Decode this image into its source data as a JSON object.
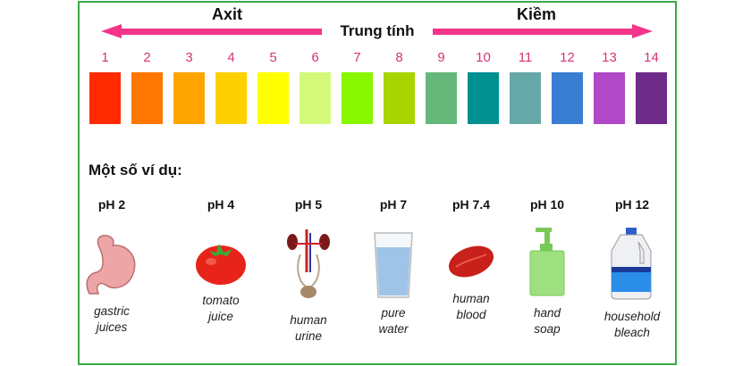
{
  "scale": {
    "acid_label": "Axit",
    "base_label": "Kiềm",
    "neutral_label": "Trung tính",
    "arrow_color": "#f4348a",
    "levels": [
      {
        "n": "1",
        "color": "#ff2a00"
      },
      {
        "n": "2",
        "color": "#ff7700"
      },
      {
        "n": "3",
        "color": "#ffa500"
      },
      {
        "n": "4",
        "color": "#ffd000"
      },
      {
        "n": "5",
        "color": "#ffff00"
      },
      {
        "n": "6",
        "color": "#d4f97a"
      },
      {
        "n": "7",
        "color": "#88f700"
      },
      {
        "n": "8",
        "color": "#a8d400"
      },
      {
        "n": "9",
        "color": "#66b87a"
      },
      {
        "n": "10",
        "color": "#009090"
      },
      {
        "n": "11",
        "color": "#66a8a8"
      },
      {
        "n": "12",
        "color": "#3a7ed4"
      },
      {
        "n": "13",
        "color": "#b048c8"
      },
      {
        "n": "14",
        "color": "#6e2b8a"
      }
    ]
  },
  "examples_title": "Một số ví dụ:",
  "examples": [
    {
      "ph": "pH 2",
      "caption1": "gastric",
      "caption2": "juices",
      "icon": "stomach-icon"
    },
    {
      "ph": "pH 4",
      "caption1": "tomato",
      "caption2": "juice",
      "icon": "tomato-icon"
    },
    {
      "ph": "pH 5",
      "caption1": "human",
      "caption2": "urine",
      "icon": "urinary-system-icon"
    },
    {
      "ph": "pH 7",
      "caption1": "pure",
      "caption2": "water",
      "icon": "water-glass-icon"
    },
    {
      "ph": "pH 7.4",
      "caption1": "human",
      "caption2": "blood",
      "icon": "blood-cell-icon"
    },
    {
      "ph": "pH 10",
      "caption1": "hand",
      "caption2": "soap",
      "icon": "soap-bottle-icon"
    },
    {
      "ph": "pH 12",
      "caption1": "household",
      "caption2": "bleach",
      "icon": "bleach-bottle-icon"
    }
  ]
}
